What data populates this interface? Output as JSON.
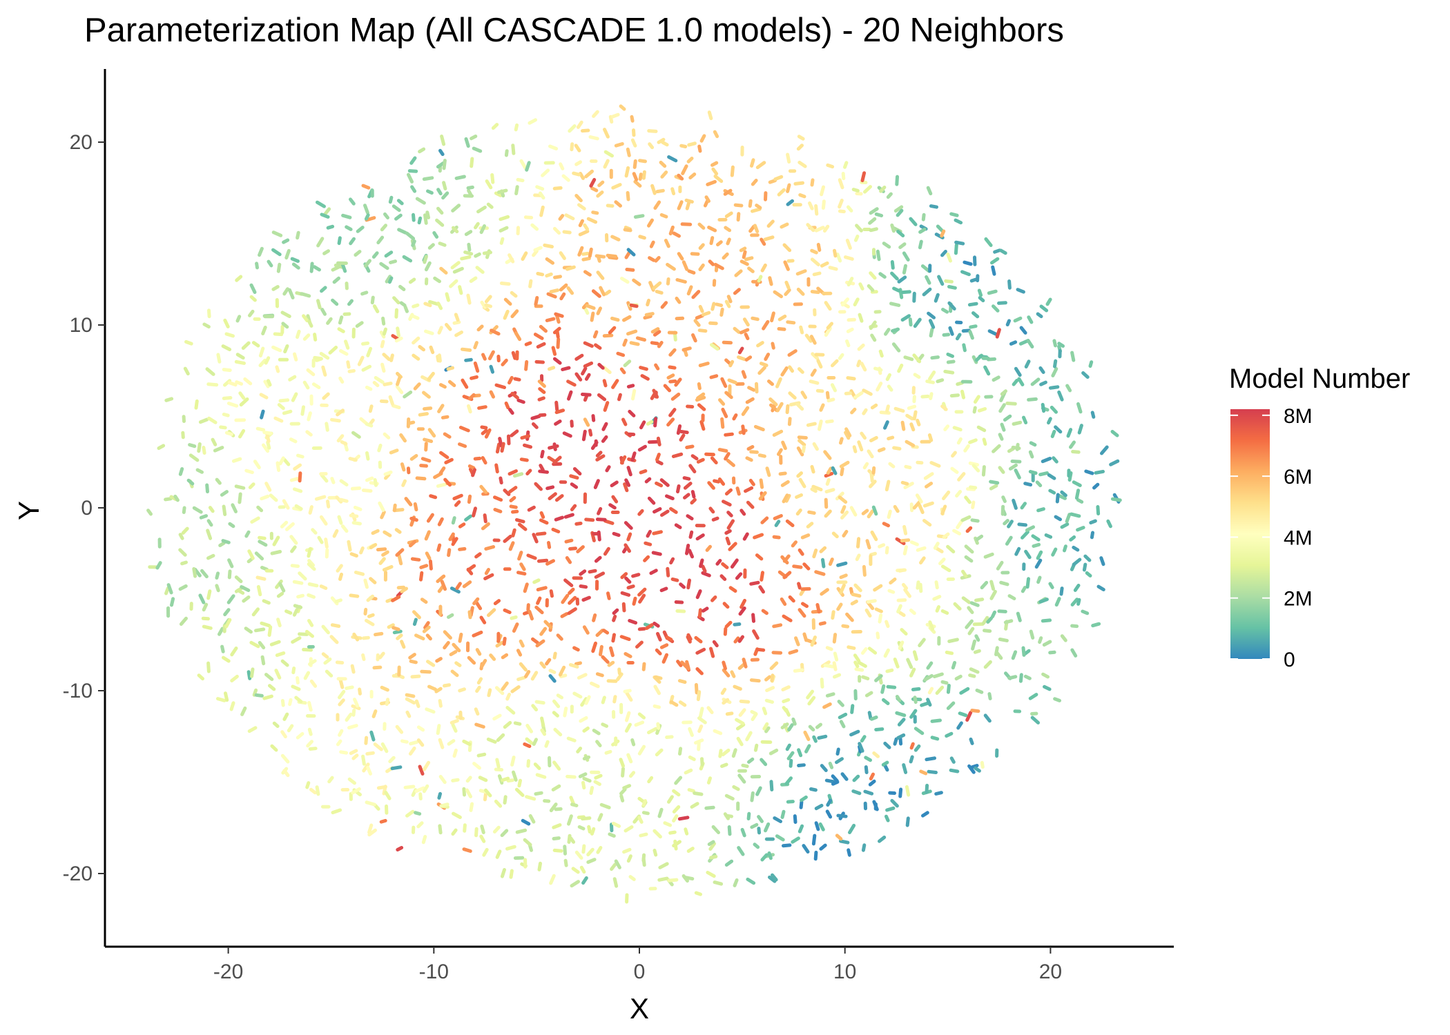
{
  "chart_data": {
    "type": "scatter",
    "title": "Parameterization Map (All CASCADE 1.0 models) - 20 Neighbors",
    "xlabel": "X",
    "ylabel": "Y",
    "xlim": [
      -26,
      26
    ],
    "ylim": [
      -24,
      24
    ],
    "x_ticks": [
      -20,
      -10,
      0,
      10,
      20
    ],
    "y_ticks": [
      -20,
      -10,
      0,
      10,
      20
    ],
    "x_tick_labels": [
      "-20",
      "-10",
      "0",
      "10",
      "20"
    ],
    "y_tick_labels": [
      "-20",
      "-10",
      "0",
      "10",
      "20"
    ],
    "grid": false,
    "color_variable": "Model Number",
    "color_scale": {
      "title": "Model Number",
      "min": 0,
      "max": 8200000,
      "ticks": [
        0,
        2000000,
        4000000,
        6000000,
        8000000
      ],
      "tick_labels": [
        "0",
        "2M",
        "4M",
        "6M",
        "8M"
      ],
      "palette": [
        "#3288bd",
        "#66c2a5",
        "#abdda4",
        "#e6f598",
        "#ffffbf",
        "#fee08b",
        "#fdae61",
        "#f46d43",
        "#d53e4f"
      ]
    },
    "legend_position": "right",
    "point_cloud": {
      "shape": "roughly circular cloud of small point clusters",
      "x_extent": [
        -24,
        23.5
      ],
      "y_extent": [
        -21.5,
        22
      ],
      "center": [
        0,
        0
      ],
      "mean_model_number_by_region": [
        {
          "region": "center-left core",
          "x": -3,
          "y": 3,
          "value": 8200000
        },
        {
          "region": "center-right core",
          "x": 2.5,
          "y": -3,
          "value": 8000000
        },
        {
          "region": "inner left",
          "x": -8,
          "y": 0,
          "value": 7000000
        },
        {
          "region": "upper center",
          "x": 4,
          "y": 12,
          "value": 6000000
        },
        {
          "region": "right",
          "x": 12,
          "y": 2,
          "value": 5000000
        },
        {
          "region": "left middle",
          "x": -15,
          "y": 2,
          "value": 4000000
        },
        {
          "region": "bottom center",
          "x": -2,
          "y": -16,
          "value": 3000000
        },
        {
          "region": "upper left edge",
          "x": -14,
          "y": 16,
          "value": 1800000
        },
        {
          "region": "far left edge",
          "x": -22,
          "y": -2,
          "value": 2200000
        },
        {
          "region": "right edge",
          "x": 21,
          "y": 0,
          "value": 800000
        },
        {
          "region": "lower right edge",
          "x": 12,
          "y": -17,
          "value": 300000
        },
        {
          "region": "upper right edge",
          "x": 17,
          "y": 12,
          "value": 700000
        }
      ]
    }
  }
}
